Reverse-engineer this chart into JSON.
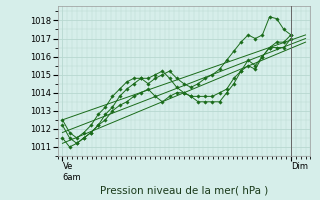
{
  "title": "",
  "xlabel": "Pression niveau de la mer( hPa )",
  "ylim": [
    1010.5,
    1018.8
  ],
  "xlim": [
    0,
    52
  ],
  "yticks": [
    1011,
    1012,
    1013,
    1014,
    1015,
    1016,
    1017,
    1018
  ],
  "xtick_positions": [
    1,
    48
  ],
  "xtick_labels": [
    "Ve\n6am",
    "Dim"
  ],
  "bg_color": "#d6eeea",
  "grid_color": "#b8d8d0",
  "line_color": "#1a6b1a",
  "vline_x": 48,
  "series_wavy": [
    [
      1012.5,
      1011.8,
      1011.5,
      1011.8,
      1012.2,
      1012.8,
      1013.2,
      1013.8,
      1014.2,
      1014.6,
      1014.8,
      1014.8,
      1014.5,
      1014.8,
      1015.0,
      1015.2,
      1014.8,
      1014.5,
      1014.3,
      1014.5,
      1014.8,
      1015.0,
      1015.3,
      1015.8,
      1016.3,
      1016.8,
      1017.2,
      1017.0,
      1017.2,
      1018.2,
      1018.1,
      1017.5,
      1017.2
    ],
    [
      1011.5,
      1011.0,
      1011.2,
      1011.5,
      1011.8,
      1012.2,
      1012.5,
      1013.0,
      1013.3,
      1013.5,
      1013.8,
      1014.0,
      1014.2,
      1013.8,
      1013.5,
      1013.8,
      1014.0,
      1014.0,
      1013.8,
      1013.5,
      1013.5,
      1013.5,
      1013.5,
      1014.0,
      1014.5,
      1015.2,
      1015.8,
      1015.5,
      1016.0,
      1016.5,
      1016.8,
      1016.8,
      1017.2
    ],
    [
      1012.2,
      1011.5,
      1011.2,
      1011.5,
      1011.8,
      1012.2,
      1012.8,
      1013.2,
      1013.8,
      1014.2,
      1014.5,
      1014.8,
      1014.8,
      1015.0,
      1015.2,
      1014.8,
      1014.3,
      1014.0,
      1013.8,
      1013.8,
      1013.8,
      1013.8,
      1014.0,
      1014.2,
      1014.8,
      1015.2,
      1015.5,
      1015.3,
      1016.0,
      1016.5,
      1016.5,
      1016.5,
      1017.0
    ]
  ],
  "series_straight": [
    {
      "x0": 1,
      "y0": 1012.5,
      "x1": 51,
      "y1": 1017.2
    },
    {
      "x0": 1,
      "y0": 1011.8,
      "x1": 51,
      "y1": 1017.0
    },
    {
      "x0": 1,
      "y0": 1011.2,
      "x1": 51,
      "y1": 1016.8
    }
  ]
}
